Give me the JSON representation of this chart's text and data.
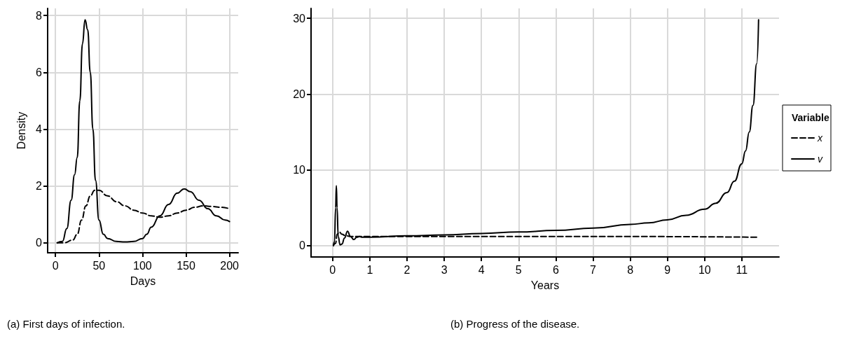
{
  "chart_data": [
    {
      "type": "line",
      "xlabel": "Days",
      "ylabel": "Density",
      "annotations": [
        "(a) First days of infection."
      ],
      "xlim": [
        -9,
        210
      ],
      "ylim": [
        -0.35,
        8.25
      ],
      "xticks": [
        0,
        50,
        100,
        150,
        200
      ],
      "yticks": [
        0,
        2,
        4,
        6,
        8
      ],
      "grid": true,
      "legend": false,
      "marker": "none",
      "series": [
        {
          "color": "#000000",
          "line_style": "dashed",
          "x": [
            2,
            10,
            20,
            25,
            30,
            35,
            40,
            45,
            50,
            60,
            70,
            80,
            90,
            100,
            110,
            120,
            130,
            140,
            150,
            160,
            170,
            180,
            190,
            200
          ],
          "values": [
            0,
            0,
            0.1,
            0.3,
            0.8,
            1.3,
            1.65,
            1.85,
            1.85,
            1.65,
            1.45,
            1.3,
            1.15,
            1.05,
            0.95,
            0.9,
            0.95,
            1.05,
            1.15,
            1.25,
            1.3,
            1.28,
            1.25,
            1.2
          ]
        },
        {
          "color": "#000000",
          "line_style": "solid",
          "x": [
            2,
            8,
            13,
            18,
            22,
            25,
            28,
            31,
            34,
            37,
            40,
            43,
            46,
            50,
            55,
            60,
            70,
            80,
            90,
            100,
            105,
            110,
            120,
            130,
            140,
            148,
            155,
            165,
            175,
            185,
            195,
            200
          ],
          "values": [
            0,
            0.05,
            0.5,
            1.5,
            2.4,
            3,
            5,
            7,
            7.85,
            7.5,
            6,
            4,
            2.2,
            0.8,
            0.3,
            0.15,
            0.05,
            0.03,
            0.05,
            0.15,
            0.3,
            0.55,
            0.95,
            1.35,
            1.75,
            1.9,
            1.8,
            1.5,
            1.2,
            0.95,
            0.8,
            0.75
          ]
        }
      ]
    },
    {
      "type": "line",
      "xlabel": "Years",
      "annotations": [
        "(b) Progress of the disease."
      ],
      "legend_title": "Variable",
      "xlim": [
        -0.58,
        12.0
      ],
      "ylim": [
        -1.5,
        31.3
      ],
      "xticks": [
        0,
        1,
        2,
        3,
        4,
        5,
        6,
        7,
        8,
        9,
        10,
        11
      ],
      "yticks": [
        0,
        10,
        20,
        30
      ],
      "grid": true,
      "legend": "right",
      "marker": "none",
      "series": [
        {
          "name": "x",
          "color": "#000000",
          "line_style": "dashed",
          "x": [
            0.02,
            0.08,
            0.12,
            0.18,
            0.25,
            0.35,
            0.5,
            0.7,
            1,
            2,
            5,
            8,
            11.45
          ],
          "values": [
            0,
            0.3,
            1.5,
            1.8,
            1.5,
            1.3,
            1.2,
            1.2,
            1.2,
            1.2,
            1.2,
            1.2,
            1.1
          ]
        },
        {
          "name": "v",
          "color": "#000000",
          "line_style": "solid",
          "x": [
            0.02,
            0.05,
            0.08,
            0.1,
            0.12,
            0.15,
            0.2,
            0.25,
            0.32,
            0.4,
            0.48,
            0.57,
            0.65,
            0.72,
            0.8,
            0.9,
            1,
            2,
            3,
            4,
            5,
            6,
            7,
            8,
            8.5,
            9,
            9.5,
            10,
            10.3,
            10.6,
            10.8,
            11,
            11.1,
            11.2,
            11.3,
            11.4,
            11.45
          ],
          "values": [
            0,
            0.5,
            5,
            7.9,
            5,
            1.2,
            0.1,
            0.2,
            1,
            1.9,
            1.2,
            0.8,
            1.1,
            1.2,
            1.1,
            1.1,
            1.1,
            1.3,
            1.4,
            1.6,
            1.8,
            2,
            2.3,
            2.8,
            3,
            3.4,
            4,
            4.8,
            5.6,
            7,
            8.5,
            10.8,
            12.5,
            15,
            18.5,
            24,
            29.8
          ]
        }
      ]
    }
  ]
}
